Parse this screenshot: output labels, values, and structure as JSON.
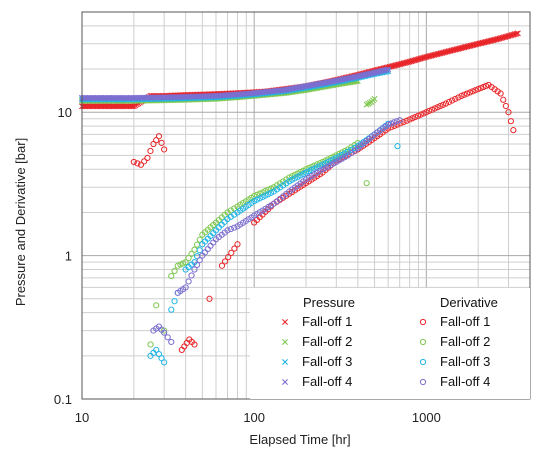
{
  "chart_data": {
    "type": "scatter",
    "title": "",
    "xlabel": "Elapsed Time [hr]",
    "ylabel": "Pressure and Derivative [bar]",
    "xscale": "log",
    "yscale": "log",
    "xlim": [
      10,
      4000
    ],
    "ylim": [
      0.1,
      50
    ],
    "x_ticks": [
      10,
      100,
      1000
    ],
    "x_tick_labels": [
      "10",
      "100",
      "1000"
    ],
    "y_ticks": [
      0.1,
      1,
      10
    ],
    "y_tick_labels": [
      "0.1",
      "1",
      "10"
    ],
    "grid": true,
    "legend": {
      "placement": "bottom-right",
      "group_headers": [
        "Pressure",
        "Derivative"
      ]
    },
    "colors": {
      "fall-off-1": "#e8262a",
      "fall-off-2": "#7ec850",
      "fall-off-3": "#1fb4e6",
      "fall-off-4": "#7b6fd0"
    },
    "series": [
      {
        "name": "Fall-off 1",
        "kind": "pressure",
        "marker": "x",
        "color_key": "fall-off-1",
        "x": [
          10,
          15,
          20,
          25,
          30,
          40,
          50,
          60,
          80,
          100,
          120,
          150,
          200,
          250,
          300,
          400,
          500,
          600,
          800,
          1000,
          1500,
          2000,
          2500,
          3000,
          3400
        ],
        "y": [
          11.0,
          11.0,
          11.0,
          13.0,
          13.0,
          13.2,
          13.3,
          13.4,
          13.6,
          13.8,
          14.0,
          14.5,
          15.2,
          16.0,
          16.8,
          18.2,
          19.5,
          20.6,
          22.5,
          24.3,
          27.5,
          30.0,
          32.0,
          34.0,
          35.5
        ]
      },
      {
        "name": "Fall-off 2",
        "kind": "pressure",
        "marker": "x",
        "color_key": "fall-off-2",
        "x": [
          10,
          15,
          20,
          30,
          40,
          60,
          80,
          100,
          150,
          200,
          300,
          400,
          450,
          480,
          500
        ],
        "y": [
          12.0,
          12.0,
          12.0,
          12.1,
          12.2,
          12.4,
          12.7,
          13.0,
          13.6,
          14.3,
          15.6,
          16.5,
          11.3,
          11.8,
          12.4
        ]
      },
      {
        "name": "Fall-off 3",
        "kind": "pressure",
        "marker": "x",
        "color_key": "fall-off-3",
        "x": [
          10,
          15,
          20,
          30,
          40,
          60,
          80,
          100,
          150,
          200,
          300,
          400,
          500,
          600
        ],
        "y": [
          12.3,
          12.3,
          12.3,
          12.4,
          12.5,
          12.7,
          13.0,
          13.3,
          14.0,
          14.8,
          16.2,
          17.4,
          18.5,
          19.3
        ]
      },
      {
        "name": "Fall-off 4",
        "kind": "pressure",
        "marker": "x",
        "color_key": "fall-off-4",
        "x": [
          10,
          15,
          20,
          30,
          40,
          60,
          80,
          100,
          150,
          200,
          300,
          400,
          500,
          600
        ],
        "y": [
          12.6,
          12.6,
          12.6,
          12.7,
          12.8,
          13.0,
          13.3,
          13.6,
          14.3,
          15.2,
          16.6,
          17.8,
          18.9,
          19.9
        ]
      },
      {
        "name": "Fall-off 1",
        "kind": "derivative",
        "marker": "o",
        "color_key": "fall-off-1",
        "x": [
          20,
          22,
          24,
          26,
          28,
          30,
          38,
          42,
          45,
          55,
          65,
          80,
          100,
          130,
          160,
          200,
          250,
          300,
          400,
          500,
          600,
          800,
          1000,
          1300,
          1600,
          2000,
          2300,
          2700,
          3000,
          3200
        ],
        "y": [
          4.5,
          4.3,
          4.8,
          6.0,
          6.8,
          5.5,
          0.22,
          0.26,
          0.24,
          0.5,
          0.85,
          1.2,
          1.7,
          2.3,
          2.7,
          3.2,
          3.8,
          4.6,
          5.5,
          6.6,
          7.7,
          8.9,
          10.0,
          11.5,
          13.0,
          14.5,
          15.5,
          13.5,
          10.0,
          7.5
        ]
      },
      {
        "name": "Fall-off 2",
        "kind": "derivative",
        "marker": "o",
        "color_key": "fall-off-2",
        "x": [
          25,
          27,
          30,
          33,
          36,
          40,
          45,
          50,
          60,
          70,
          80,
          100,
          130,
          160,
          200,
          250,
          300,
          350,
          400,
          450
        ],
        "y": [
          0.24,
          0.45,
          0.3,
          0.72,
          0.85,
          0.9,
          1.1,
          1.4,
          1.7,
          2.0,
          2.2,
          2.6,
          3.0,
          3.5,
          4.0,
          4.5,
          5.0,
          5.5,
          6.1,
          3.2
        ]
      },
      {
        "name": "Fall-off 3",
        "kind": "derivative",
        "marker": "o",
        "color_key": "fall-off-3",
        "x": [
          25,
          27,
          30,
          33,
          36,
          40,
          45,
          50,
          60,
          70,
          80,
          100,
          130,
          160,
          200,
          250,
          300,
          350,
          400,
          500,
          600,
          680
        ],
        "y": [
          0.2,
          0.22,
          0.18,
          0.42,
          0.55,
          0.8,
          0.9,
          1.2,
          1.5,
          1.8,
          2.0,
          2.4,
          2.8,
          3.3,
          3.8,
          4.3,
          4.8,
          5.3,
          5.8,
          7.0,
          8.3,
          5.8
        ]
      },
      {
        "name": "Fall-off 4",
        "kind": "derivative",
        "marker": "o",
        "color_key": "fall-off-4",
        "x": [
          26,
          28,
          30,
          33,
          36,
          40,
          45,
          50,
          60,
          70,
          80,
          100,
          130,
          160,
          200,
          250,
          300,
          350,
          400,
          450,
          500,
          600,
          700
        ],
        "y": [
          0.3,
          0.32,
          0.29,
          0.25,
          0.55,
          0.6,
          0.8,
          1.0,
          1.3,
          1.5,
          1.6,
          1.9,
          2.3,
          2.8,
          3.4,
          4.0,
          4.5,
          5.0,
          5.6,
          6.3,
          7.0,
          8.2,
          8.8
        ]
      }
    ]
  }
}
